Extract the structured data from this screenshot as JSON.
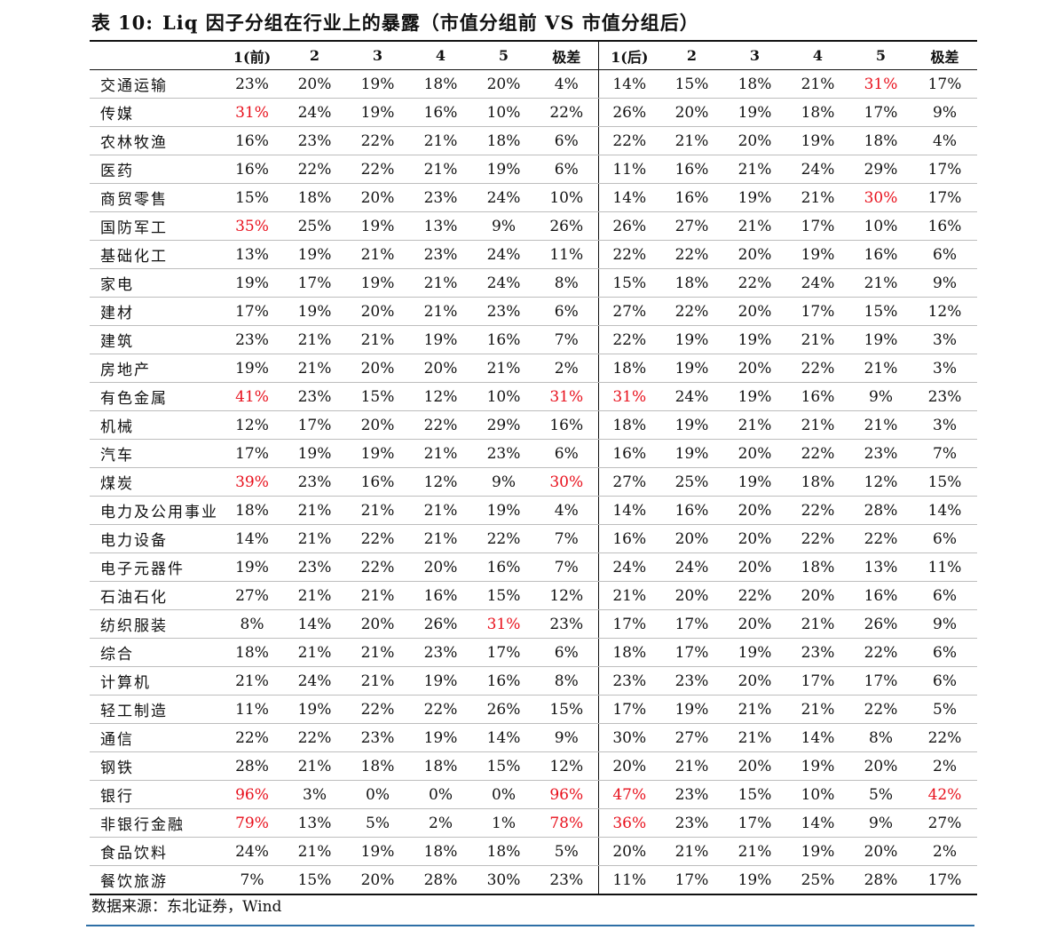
{
  "title": {
    "prefix": "表",
    "number": "10:",
    "text": "Liq 因子分组在行业上的暴露（市值分组前 VS 市值分组后）"
  },
  "highlight_color": "#e8101c",
  "columns": [
    "",
    "1(前)",
    "2",
    "3",
    "4",
    "5",
    "极差",
    "1(后)",
    "2",
    "3",
    "4",
    "5",
    "极差"
  ],
  "rows": [
    {
      "industry": "交通运输",
      "before": [
        "23%",
        "20%",
        "19%",
        "18%",
        "20%",
        "4%"
      ],
      "after": [
        "14%",
        "15%",
        "18%",
        "21%",
        "31%",
        "17%"
      ],
      "hl_before": [],
      "hl_after": [
        4
      ]
    },
    {
      "industry": "传媒",
      "before": [
        "31%",
        "24%",
        "19%",
        "16%",
        "10%",
        "22%"
      ],
      "after": [
        "26%",
        "20%",
        "19%",
        "18%",
        "17%",
        "9%"
      ],
      "hl_before": [
        0
      ],
      "hl_after": []
    },
    {
      "industry": "农林牧渔",
      "before": [
        "16%",
        "23%",
        "22%",
        "21%",
        "18%",
        "6%"
      ],
      "after": [
        "22%",
        "21%",
        "20%",
        "19%",
        "18%",
        "4%"
      ],
      "hl_before": [],
      "hl_after": []
    },
    {
      "industry": "医药",
      "before": [
        "16%",
        "22%",
        "22%",
        "21%",
        "19%",
        "6%"
      ],
      "after": [
        "11%",
        "16%",
        "21%",
        "24%",
        "29%",
        "17%"
      ],
      "hl_before": [],
      "hl_after": []
    },
    {
      "industry": "商贸零售",
      "before": [
        "15%",
        "18%",
        "20%",
        "23%",
        "24%",
        "10%"
      ],
      "after": [
        "14%",
        "16%",
        "19%",
        "21%",
        "30%",
        "17%"
      ],
      "hl_before": [],
      "hl_after": [
        4
      ]
    },
    {
      "industry": "国防军工",
      "before": [
        "35%",
        "25%",
        "19%",
        "13%",
        "9%",
        "26%"
      ],
      "after": [
        "26%",
        "27%",
        "21%",
        "17%",
        "10%",
        "16%"
      ],
      "hl_before": [
        0
      ],
      "hl_after": []
    },
    {
      "industry": "基础化工",
      "before": [
        "13%",
        "19%",
        "21%",
        "23%",
        "24%",
        "11%"
      ],
      "after": [
        "22%",
        "22%",
        "20%",
        "19%",
        "16%",
        "6%"
      ],
      "hl_before": [],
      "hl_after": []
    },
    {
      "industry": "家电",
      "before": [
        "19%",
        "17%",
        "19%",
        "21%",
        "24%",
        "8%"
      ],
      "after": [
        "15%",
        "18%",
        "22%",
        "24%",
        "21%",
        "9%"
      ],
      "hl_before": [],
      "hl_after": []
    },
    {
      "industry": "建材",
      "before": [
        "17%",
        "19%",
        "20%",
        "21%",
        "23%",
        "6%"
      ],
      "after": [
        "27%",
        "22%",
        "20%",
        "17%",
        "15%",
        "12%"
      ],
      "hl_before": [],
      "hl_after": []
    },
    {
      "industry": "建筑",
      "before": [
        "23%",
        "21%",
        "21%",
        "19%",
        "16%",
        "7%"
      ],
      "after": [
        "22%",
        "19%",
        "19%",
        "21%",
        "19%",
        "3%"
      ],
      "hl_before": [],
      "hl_after": []
    },
    {
      "industry": "房地产",
      "before": [
        "19%",
        "21%",
        "20%",
        "20%",
        "21%",
        "2%"
      ],
      "after": [
        "18%",
        "19%",
        "20%",
        "22%",
        "21%",
        "3%"
      ],
      "hl_before": [],
      "hl_after": []
    },
    {
      "industry": "有色金属",
      "before": [
        "41%",
        "23%",
        "15%",
        "12%",
        "10%",
        "31%"
      ],
      "after": [
        "31%",
        "24%",
        "19%",
        "16%",
        "9%",
        "23%"
      ],
      "hl_before": [
        0,
        5
      ],
      "hl_after": [
        0
      ]
    },
    {
      "industry": "机械",
      "before": [
        "12%",
        "17%",
        "20%",
        "22%",
        "29%",
        "16%"
      ],
      "after": [
        "18%",
        "19%",
        "21%",
        "21%",
        "21%",
        "3%"
      ],
      "hl_before": [],
      "hl_after": []
    },
    {
      "industry": "汽车",
      "before": [
        "17%",
        "19%",
        "19%",
        "21%",
        "23%",
        "6%"
      ],
      "after": [
        "16%",
        "19%",
        "20%",
        "22%",
        "23%",
        "7%"
      ],
      "hl_before": [],
      "hl_after": []
    },
    {
      "industry": "煤炭",
      "before": [
        "39%",
        "23%",
        "16%",
        "12%",
        "9%",
        "30%"
      ],
      "after": [
        "27%",
        "25%",
        "19%",
        "18%",
        "12%",
        "15%"
      ],
      "hl_before": [
        0,
        5
      ],
      "hl_after": []
    },
    {
      "industry": "电力及公用事业",
      "before": [
        "18%",
        "21%",
        "21%",
        "21%",
        "19%",
        "4%"
      ],
      "after": [
        "14%",
        "16%",
        "20%",
        "22%",
        "28%",
        "14%"
      ],
      "hl_before": [],
      "hl_after": []
    },
    {
      "industry": "电力设备",
      "before": [
        "14%",
        "21%",
        "22%",
        "21%",
        "22%",
        "7%"
      ],
      "after": [
        "16%",
        "20%",
        "20%",
        "22%",
        "22%",
        "6%"
      ],
      "hl_before": [],
      "hl_after": []
    },
    {
      "industry": "电子元器件",
      "before": [
        "19%",
        "23%",
        "22%",
        "20%",
        "16%",
        "7%"
      ],
      "after": [
        "24%",
        "24%",
        "20%",
        "18%",
        "13%",
        "11%"
      ],
      "hl_before": [],
      "hl_after": []
    },
    {
      "industry": "石油石化",
      "before": [
        "27%",
        "21%",
        "21%",
        "16%",
        "15%",
        "12%"
      ],
      "after": [
        "21%",
        "20%",
        "22%",
        "20%",
        "16%",
        "6%"
      ],
      "hl_before": [],
      "hl_after": []
    },
    {
      "industry": "纺织服装",
      "before": [
        "8%",
        "14%",
        "20%",
        "26%",
        "31%",
        "23%"
      ],
      "after": [
        "17%",
        "17%",
        "20%",
        "21%",
        "26%",
        "9%"
      ],
      "hl_before": [
        4
      ],
      "hl_after": []
    },
    {
      "industry": "综合",
      "before": [
        "18%",
        "21%",
        "21%",
        "23%",
        "17%",
        "6%"
      ],
      "after": [
        "18%",
        "17%",
        "19%",
        "23%",
        "22%",
        "6%"
      ],
      "hl_before": [],
      "hl_after": []
    },
    {
      "industry": "计算机",
      "before": [
        "21%",
        "24%",
        "21%",
        "19%",
        "16%",
        "8%"
      ],
      "after": [
        "23%",
        "23%",
        "20%",
        "17%",
        "17%",
        "6%"
      ],
      "hl_before": [],
      "hl_after": []
    },
    {
      "industry": "轻工制造",
      "before": [
        "11%",
        "19%",
        "22%",
        "22%",
        "26%",
        "15%"
      ],
      "after": [
        "17%",
        "19%",
        "21%",
        "21%",
        "22%",
        "5%"
      ],
      "hl_before": [],
      "hl_after": []
    },
    {
      "industry": "通信",
      "before": [
        "22%",
        "22%",
        "23%",
        "19%",
        "14%",
        "9%"
      ],
      "after": [
        "30%",
        "27%",
        "21%",
        "14%",
        "8%",
        "22%"
      ],
      "hl_before": [],
      "hl_after": []
    },
    {
      "industry": "钢铁",
      "before": [
        "28%",
        "21%",
        "18%",
        "18%",
        "15%",
        "12%"
      ],
      "after": [
        "20%",
        "21%",
        "20%",
        "19%",
        "20%",
        "2%"
      ],
      "hl_before": [],
      "hl_after": []
    },
    {
      "industry": "银行",
      "before": [
        "96%",
        "3%",
        "0%",
        "0%",
        "0%",
        "96%"
      ],
      "after": [
        "47%",
        "23%",
        "15%",
        "10%",
        "5%",
        "42%"
      ],
      "hl_before": [
        0,
        5
      ],
      "hl_after": [
        0,
        5
      ]
    },
    {
      "industry": "非银行金融",
      "before": [
        "79%",
        "13%",
        "5%",
        "2%",
        "1%",
        "78%"
      ],
      "after": [
        "36%",
        "23%",
        "17%",
        "14%",
        "9%",
        "27%"
      ],
      "hl_before": [
        0,
        5
      ],
      "hl_after": [
        0
      ]
    },
    {
      "industry": "食品饮料",
      "before": [
        "24%",
        "21%",
        "19%",
        "18%",
        "18%",
        "5%"
      ],
      "after": [
        "20%",
        "21%",
        "21%",
        "19%",
        "20%",
        "2%"
      ],
      "hl_before": [],
      "hl_after": []
    },
    {
      "industry": "餐饮旅游",
      "before": [
        "7%",
        "15%",
        "20%",
        "28%",
        "30%",
        "23%"
      ],
      "after": [
        "11%",
        "17%",
        "19%",
        "25%",
        "28%",
        "17%"
      ],
      "hl_before": [],
      "hl_after": []
    }
  ],
  "source": "数据来源：东北证券，Wind"
}
